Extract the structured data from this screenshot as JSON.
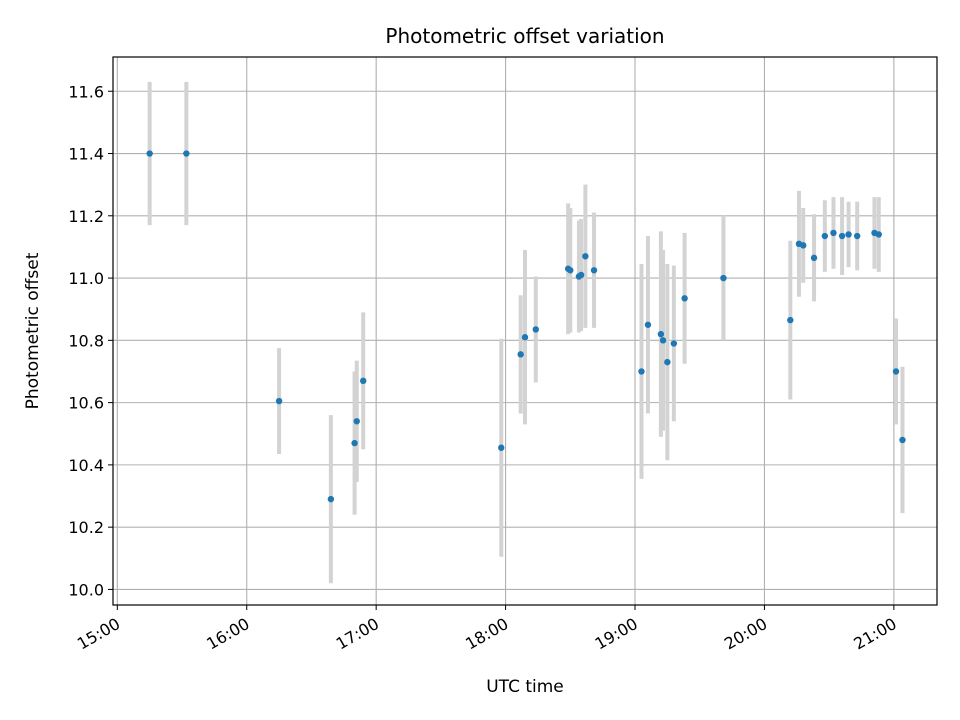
{
  "chart_data": {
    "type": "scatter",
    "title": "Photometric offset variation",
    "xlabel": "UTC time",
    "ylabel": "Photometric offset",
    "x_axis": {
      "type": "time",
      "range": [
        "14:58",
        "21:20"
      ],
      "ticks": [
        "15:00",
        "16:00",
        "17:00",
        "18:00",
        "19:00",
        "20:00",
        "21:00"
      ]
    },
    "y_axis": {
      "range": [
        9.95,
        11.71
      ],
      "ticks": [
        "10.0",
        "10.2",
        "10.4",
        "10.6",
        "10.8",
        "11.0",
        "11.2",
        "11.4",
        "11.6"
      ]
    },
    "grid": true,
    "colors": {
      "point": "#1f77b4",
      "errorbar": "#d3d3d3",
      "grid": "#b0b0b0"
    },
    "points": [
      {
        "t": "15:15",
        "y": 11.4,
        "err": 0.23
      },
      {
        "t": "15:32",
        "y": 11.4,
        "err": 0.23
      },
      {
        "t": "16:15",
        "y": 10.605,
        "err": 0.17
      },
      {
        "t": "16:39",
        "y": 10.29,
        "err": 0.27
      },
      {
        "t": "16:50",
        "y": 10.47,
        "err": 0.23
      },
      {
        "t": "16:51",
        "y": 10.54,
        "err": 0.195
      },
      {
        "t": "16:54",
        "y": 10.67,
        "err": 0.22
      },
      {
        "t": "17:58",
        "y": 10.455,
        "err": 0.35
      },
      {
        "t": "18:07",
        "y": 10.755,
        "err": 0.19
      },
      {
        "t": "18:09",
        "y": 10.81,
        "err": 0.28
      },
      {
        "t": "18:14",
        "y": 10.835,
        "err": 0.17
      },
      {
        "t": "18:29",
        "y": 11.03,
        "err": 0.21
      },
      {
        "t": "18:30",
        "y": 11.025,
        "err": 0.2
      },
      {
        "t": "18:34",
        "y": 11.005,
        "err": 0.18
      },
      {
        "t": "18:35",
        "y": 11.01,
        "err": 0.18
      },
      {
        "t": "18:37",
        "y": 11.07,
        "err": 0.23
      },
      {
        "t": "18:41",
        "y": 11.025,
        "err": 0.185
      },
      {
        "t": "19:03",
        "y": 10.7,
        "err": 0.345
      },
      {
        "t": "19:06",
        "y": 10.85,
        "err": 0.285
      },
      {
        "t": "19:12",
        "y": 10.82,
        "err": 0.33
      },
      {
        "t": "19:13",
        "y": 10.8,
        "err": 0.29
      },
      {
        "t": "19:15",
        "y": 10.73,
        "err": 0.315
      },
      {
        "t": "19:18",
        "y": 10.79,
        "err": 0.25
      },
      {
        "t": "19:23",
        "y": 10.935,
        "err": 0.21
      },
      {
        "t": "19:41",
        "y": 11.0,
        "err": 0.2
      },
      {
        "t": "20:12",
        "y": 10.865,
        "err": 0.255
      },
      {
        "t": "20:16",
        "y": 11.11,
        "err": 0.17
      },
      {
        "t": "20:18",
        "y": 11.105,
        "err": 0.12
      },
      {
        "t": "20:23",
        "y": 11.065,
        "err": 0.14
      },
      {
        "t": "20:28",
        "y": 11.135,
        "err": 0.115
      },
      {
        "t": "20:32",
        "y": 11.145,
        "err": 0.115
      },
      {
        "t": "20:36",
        "y": 11.135,
        "err": 0.125
      },
      {
        "t": "20:39",
        "y": 11.14,
        "err": 0.105
      },
      {
        "t": "20:43",
        "y": 11.135,
        "err": 0.11
      },
      {
        "t": "20:51",
        "y": 11.145,
        "err": 0.115
      },
      {
        "t": "20:53",
        "y": 11.14,
        "err": 0.12
      },
      {
        "t": "21:01",
        "y": 10.7,
        "err": 0.17
      },
      {
        "t": "21:04",
        "y": 10.48,
        "err": 0.235
      }
    ]
  }
}
